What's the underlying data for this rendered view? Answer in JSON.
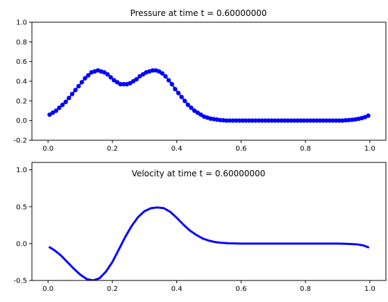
{
  "chart_data": [
    {
      "type": "scatter",
      "title": "Pressure at time t =     0.60000000",
      "xlim": [
        -0.05,
        1.05
      ],
      "ylim": [
        -0.2,
        1.0
      ],
      "xticks": [
        "0.0",
        "0.2",
        "0.4",
        "0.6",
        "0.8",
        "1.0"
      ],
      "xtick_values": [
        0.0,
        0.2,
        0.4,
        0.6,
        0.8,
        1.0
      ],
      "yticks": [
        "-0.2",
        "0.0",
        "0.2",
        "0.4",
        "0.6",
        "0.8",
        "1.0"
      ],
      "ytick_values": [
        -0.2,
        0.0,
        0.2,
        0.4,
        0.6,
        0.8,
        1.0
      ],
      "series": [
        {
          "color": "#0000ff",
          "marker": "circle",
          "line": true,
          "x": [
            0.005,
            0.015,
            0.025,
            0.035,
            0.045,
            0.055,
            0.065,
            0.075,
            0.085,
            0.095,
            0.105,
            0.115,
            0.125,
            0.135,
            0.145,
            0.155,
            0.165,
            0.175,
            0.185,
            0.195,
            0.205,
            0.215,
            0.225,
            0.235,
            0.245,
            0.255,
            0.265,
            0.275,
            0.285,
            0.295,
            0.305,
            0.315,
            0.325,
            0.335,
            0.345,
            0.355,
            0.365,
            0.375,
            0.385,
            0.395,
            0.405,
            0.415,
            0.425,
            0.435,
            0.445,
            0.455,
            0.465,
            0.475,
            0.485,
            0.495,
            0.505,
            0.515,
            0.525,
            0.535,
            0.545,
            0.555,
            0.565,
            0.575,
            0.585,
            0.595,
            0.605,
            0.615,
            0.625,
            0.635,
            0.645,
            0.655,
            0.665,
            0.675,
            0.685,
            0.695,
            0.705,
            0.715,
            0.725,
            0.735,
            0.745,
            0.755,
            0.765,
            0.775,
            0.785,
            0.795,
            0.805,
            0.815,
            0.825,
            0.835,
            0.845,
            0.855,
            0.865,
            0.875,
            0.885,
            0.895,
            0.905,
            0.915,
            0.925,
            0.935,
            0.945,
            0.955,
            0.965,
            0.975,
            0.985,
            0.995
          ],
          "y": [
            0.06,
            0.08,
            0.1,
            0.13,
            0.16,
            0.19,
            0.23,
            0.27,
            0.31,
            0.35,
            0.39,
            0.43,
            0.46,
            0.49,
            0.5,
            0.51,
            0.5,
            0.49,
            0.47,
            0.44,
            0.41,
            0.39,
            0.37,
            0.37,
            0.37,
            0.38,
            0.4,
            0.42,
            0.45,
            0.47,
            0.49,
            0.5,
            0.51,
            0.51,
            0.5,
            0.48,
            0.45,
            0.41,
            0.37,
            0.32,
            0.28,
            0.24,
            0.2,
            0.16,
            0.13,
            0.1,
            0.08,
            0.06,
            0.04,
            0.03,
            0.02,
            0.015,
            0.01,
            0.005,
            0.003,
            0.0,
            0.0,
            0.0,
            0.0,
            0.0,
            0.0,
            0.0,
            0.0,
            0.0,
            0.0,
            0.0,
            0.0,
            0.0,
            0.0,
            0.0,
            0.0,
            0.0,
            0.0,
            0.0,
            0.0,
            0.0,
            0.0,
            0.0,
            0.0,
            0.0,
            0.0,
            0.0,
            0.0,
            0.0,
            0.0,
            0.0,
            0.0,
            0.0,
            0.0,
            0.0,
            0.0,
            0.0,
            0.003,
            0.005,
            0.008,
            0.012,
            0.018,
            0.025,
            0.035,
            0.05
          ]
        }
      ]
    },
    {
      "type": "line",
      "title": "Velocity at time t =     0.60000000",
      "xlim": [
        -0.05,
        1.05
      ],
      "ylim": [
        -0.5,
        1.1
      ],
      "xticks": [
        "0.0",
        "0.2",
        "0.4",
        "0.6",
        "0.8",
        "1.0"
      ],
      "xtick_values": [
        0.0,
        0.2,
        0.4,
        0.6,
        0.8,
        1.0
      ],
      "yticks": [
        "-0.5",
        "0.0",
        "0.5",
        "1.0"
      ],
      "ytick_values": [
        -0.5,
        0.0,
        0.5,
        1.0
      ],
      "series": [
        {
          "color": "#0000ff",
          "x": [
            0.005,
            0.02,
            0.04,
            0.06,
            0.08,
            0.1,
            0.12,
            0.14,
            0.16,
            0.18,
            0.2,
            0.22,
            0.24,
            0.26,
            0.28,
            0.3,
            0.32,
            0.34,
            0.36,
            0.38,
            0.4,
            0.42,
            0.44,
            0.46,
            0.48,
            0.5,
            0.52,
            0.54,
            0.56,
            0.58,
            0.6,
            0.65,
            0.7,
            0.75,
            0.8,
            0.85,
            0.9,
            0.93,
            0.96,
            0.98,
            0.995
          ],
          "y": [
            -0.05,
            -0.09,
            -0.16,
            -0.25,
            -0.34,
            -0.42,
            -0.48,
            -0.5,
            -0.47,
            -0.38,
            -0.25,
            -0.08,
            0.09,
            0.24,
            0.36,
            0.44,
            0.48,
            0.49,
            0.48,
            0.43,
            0.35,
            0.26,
            0.18,
            0.12,
            0.07,
            0.04,
            0.02,
            0.01,
            0.005,
            0.002,
            0.0,
            0.0,
            0.0,
            0.0,
            0.0,
            0.0,
            0.0,
            -0.003,
            -0.01,
            -0.025,
            -0.05
          ]
        }
      ]
    }
  ]
}
